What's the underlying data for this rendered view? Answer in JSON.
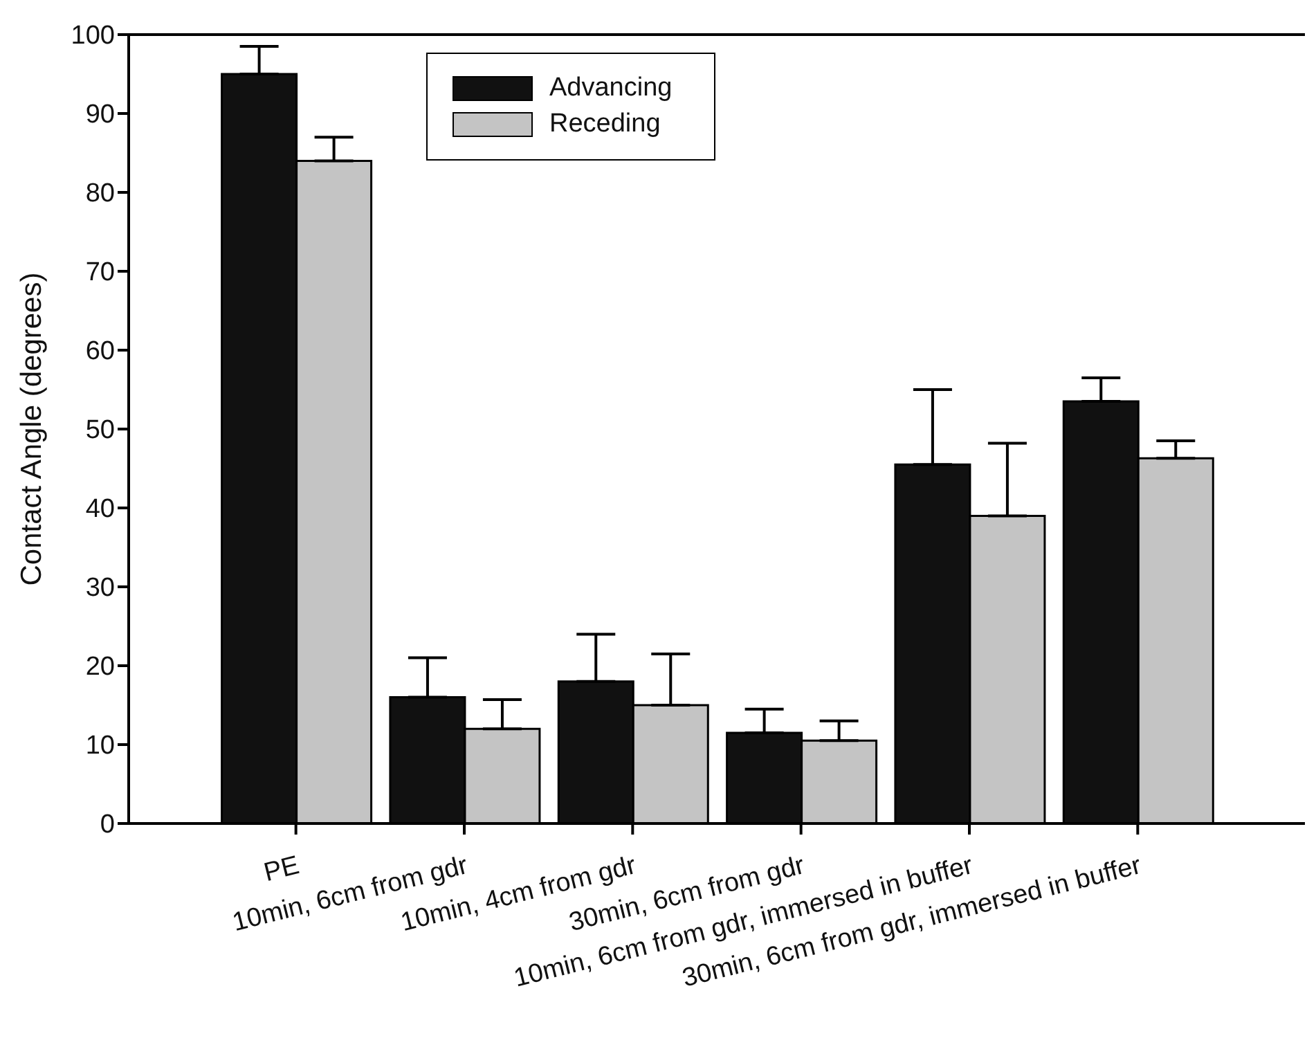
{
  "chart_data": {
    "type": "bar",
    "ylabel": "Contact Angle (degrees)",
    "categories": [
      "PE",
      "10min, 6cm from gdr",
      "10min, 4cm from gdr",
      "30min, 6cm from gdr",
      "10min, 6cm from gdr, immersed in buffer",
      "30min, 6cm from gdr, immersed in buffer"
    ],
    "series": [
      {
        "name": "Advancing",
        "color": "#111111",
        "values": [
          95,
          16,
          18,
          11.5,
          45.5,
          53.5
        ],
        "errors": [
          [
            95,
            98.5
          ],
          [
            16,
            21
          ],
          [
            18,
            24
          ],
          [
            11.5,
            14.5
          ],
          [
            45.5,
            55
          ],
          [
            53.5,
            56.5
          ]
        ]
      },
      {
        "name": "Receding",
        "color": "#c4c4c4",
        "values": [
          84,
          12,
          15,
          10.5,
          39,
          46.3
        ],
        "errors": [
          [
            84,
            87
          ],
          [
            12,
            15.7
          ],
          [
            15,
            21.5
          ],
          [
            10.5,
            13
          ],
          [
            39,
            48.2
          ],
          [
            46.3,
            48.5
          ]
        ]
      }
    ],
    "ylim": [
      0,
      100
    ],
    "yticks": [
      0,
      10,
      20,
      30,
      40,
      50,
      60,
      70,
      80,
      90,
      100
    ],
    "grid": false,
    "legend": "top"
  }
}
